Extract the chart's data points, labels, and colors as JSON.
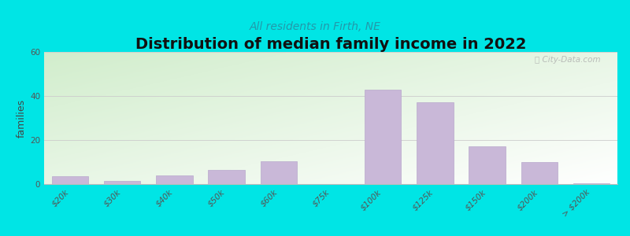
{
  "title": "Distribution of median family income in 2022",
  "subtitle": "All residents in Firth, NE",
  "ylabel": "families",
  "categories": [
    "$20k",
    "$30k",
    "$40k",
    "$50k",
    "$60k",
    "$75k",
    "$100k",
    "$125k",
    "$150k",
    "$200k",
    "> $200k"
  ],
  "values": [
    3.5,
    1.5,
    4,
    6.5,
    10.5,
    0,
    43,
    37,
    17,
    10,
    0.5
  ],
  "bar_color": "#c9b8d8",
  "bar_edge_color": "#b8a8cc",
  "background_outer": "#00e5e5",
  "ylim": [
    0,
    60
  ],
  "yticks": [
    0,
    20,
    40,
    60
  ],
  "title_fontsize": 14,
  "subtitle_fontsize": 10,
  "ylabel_fontsize": 9,
  "tick_fontsize": 7.5,
  "watermark": "ⓘ City-Data.com",
  "subtitle_color": "#2299aa",
  "bar_width": 0.7
}
